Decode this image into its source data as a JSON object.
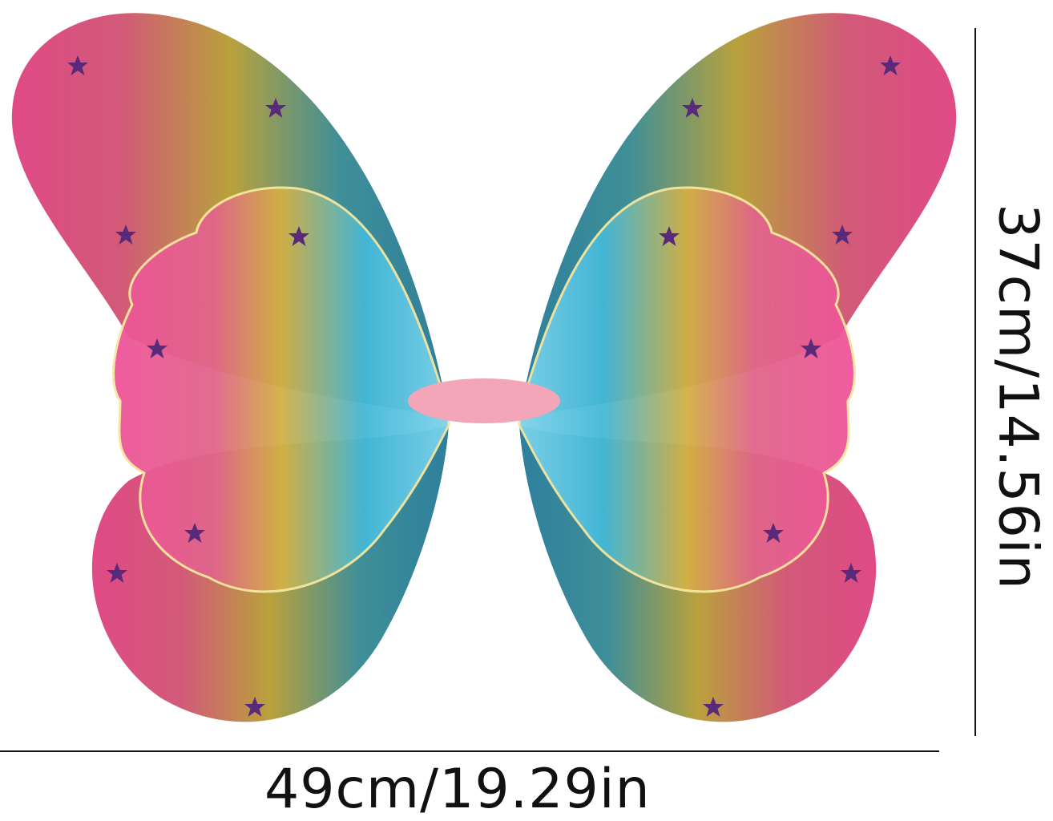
{
  "product": {
    "description_icon": "butterfly-wings-image",
    "colors": {
      "pink": "#e8457f",
      "yellow": "#c9a83a",
      "teal": "#2f8fa8",
      "cyan": "#3fb6d8",
      "star": "#5a2a7a",
      "feather": "#f3a6b8"
    }
  },
  "dimensions": {
    "width_label": "49cm/19.29in",
    "height_label": "37cm/14.56in"
  }
}
